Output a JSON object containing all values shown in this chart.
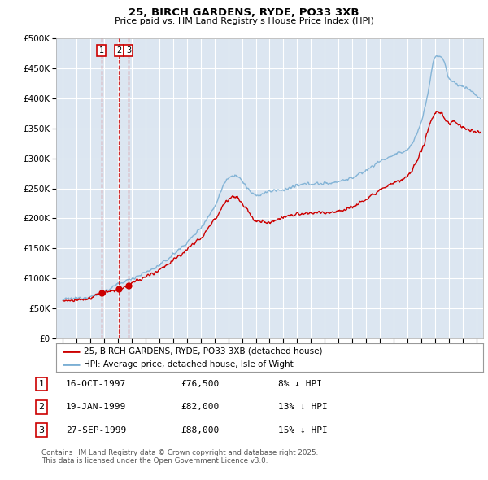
{
  "title": "25, BIRCH GARDENS, RYDE, PO33 3XB",
  "subtitle": "Price paid vs. HM Land Registry's House Price Index (HPI)",
  "legend_line1": "25, BIRCH GARDENS, RYDE, PO33 3XB (detached house)",
  "legend_line2": "HPI: Average price, detached house, Isle of Wight",
  "footnote_line1": "Contains HM Land Registry data © Crown copyright and database right 2025.",
  "footnote_line2": "This data is licensed under the Open Government Licence v3.0.",
  "transactions": [
    {
      "num": 1,
      "date": "16-OCT-1997",
      "price": 76500,
      "pct": "8% ↓ HPI",
      "year_x": 1997.79
    },
    {
      "num": 2,
      "date": "19-JAN-1999",
      "price": 82000,
      "pct": "13% ↓ HPI",
      "year_x": 1999.05
    },
    {
      "num": 3,
      "date": "27-SEP-1999",
      "price": 88000,
      "pct": "15% ↓ HPI",
      "year_x": 1999.75
    }
  ],
  "red_line_color": "#cc0000",
  "blue_line_color": "#7bafd4",
  "background_color": "#dce6f1",
  "grid_color": "#ffffff",
  "ylim": [
    0,
    500000
  ],
  "xlim_start": 1994.5,
  "xlim_end": 2025.5,
  "yticks": [
    0,
    50000,
    100000,
    150000,
    200000,
    250000,
    300000,
    350000,
    400000,
    450000,
    500000
  ]
}
